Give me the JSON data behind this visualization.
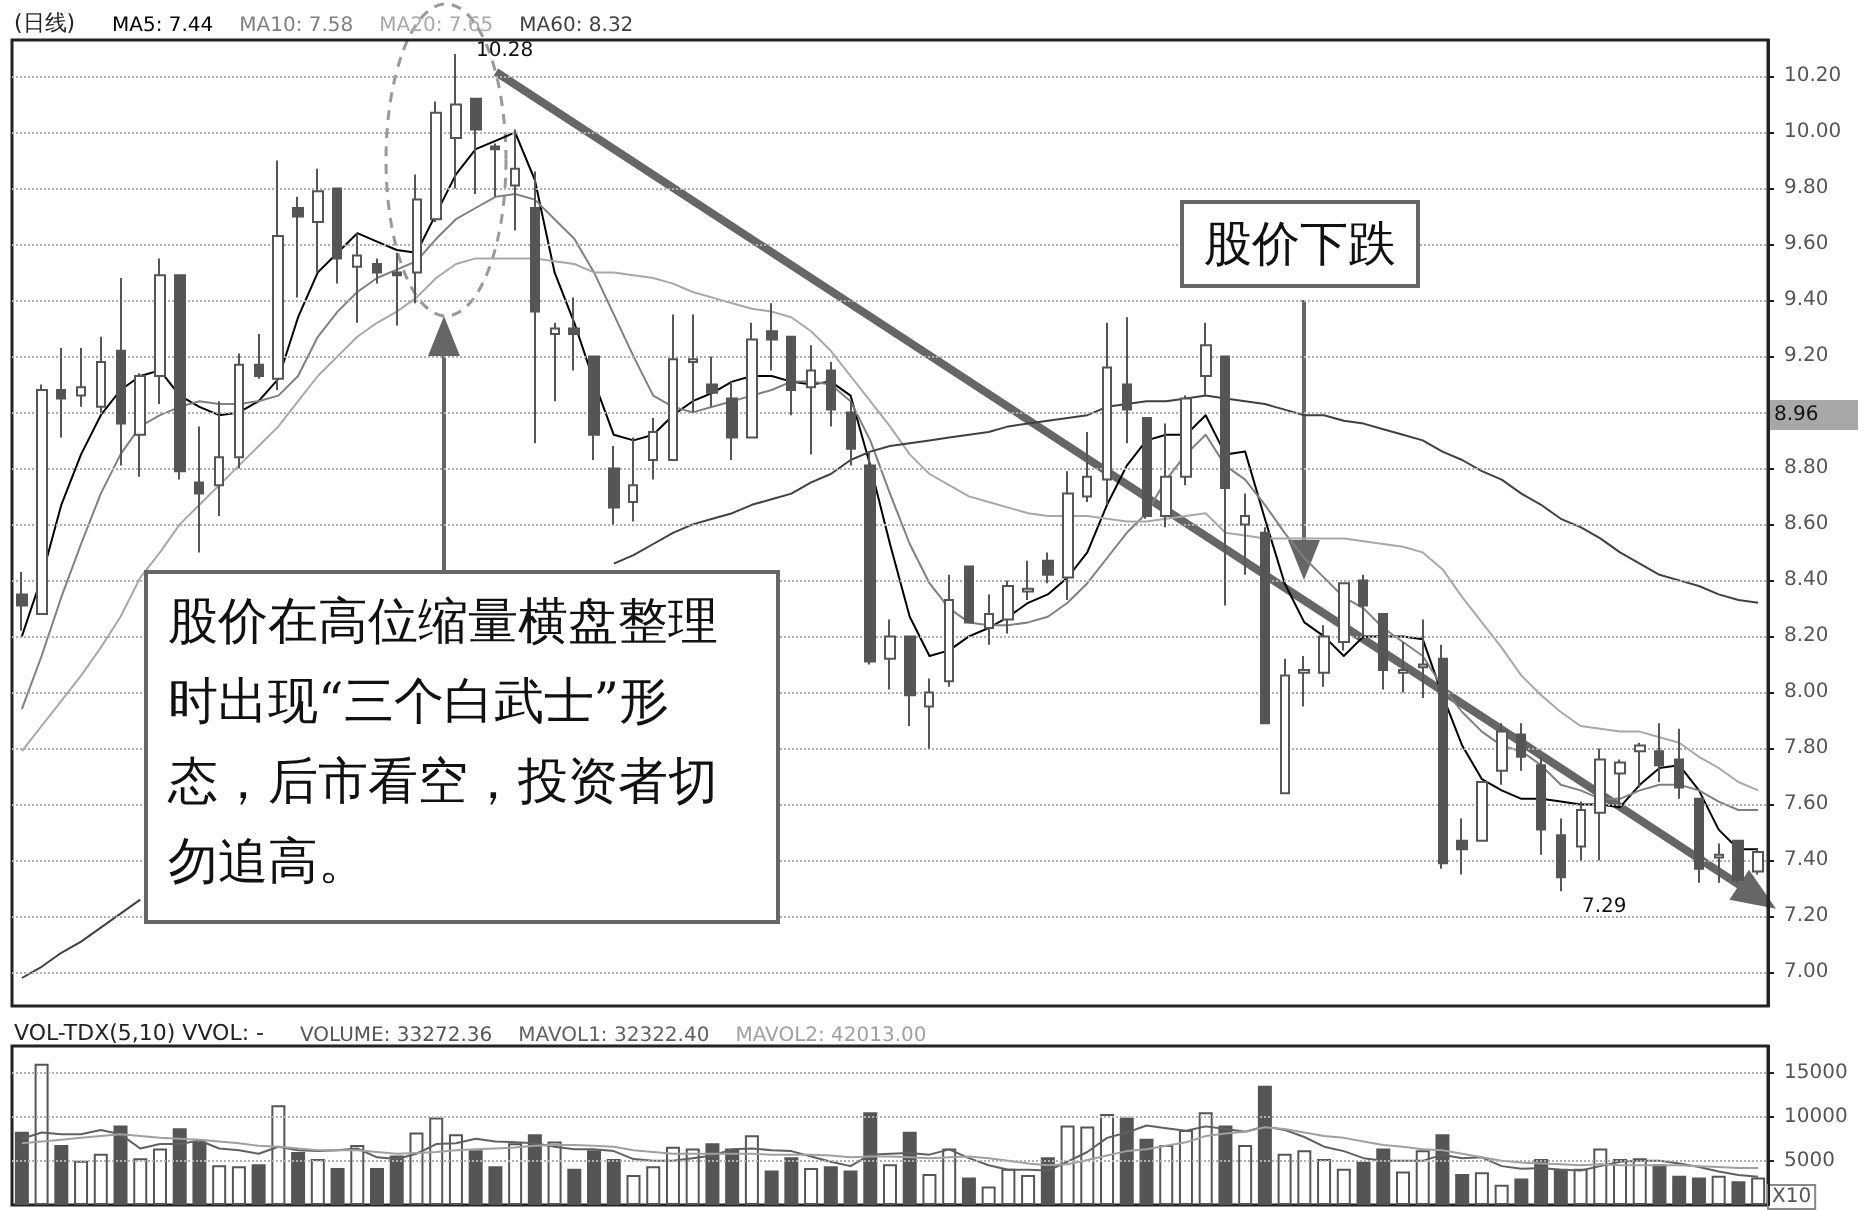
{
  "chart_data": [
    {
      "type": "candlestick",
      "title": "(日线)",
      "categories": [
        null,
        null,
        null,
        null,
        null,
        null,
        null,
        null,
        null,
        null,
        null,
        null,
        null,
        null,
        null,
        null,
        null,
        null,
        null,
        null,
        null,
        null,
        null,
        null,
        null,
        null,
        null,
        null,
        null,
        null,
        null,
        null,
        null,
        null,
        null,
        null,
        null,
        null,
        null,
        null,
        null,
        null,
        null,
        null,
        null,
        null,
        null,
        null,
        null,
        null,
        null,
        null,
        null,
        null,
        null,
        null,
        null,
        null,
        null,
        null,
        null,
        null,
        null,
        null,
        null,
        null,
        null,
        null,
        null,
        null,
        null,
        null,
        null,
        null,
        null,
        null,
        null,
        null,
        null,
        null,
        null,
        null,
        null,
        null,
        null,
        null,
        null,
        null,
        null
      ],
      "ohlc": [
        [
          8.35,
          8.43,
          8.22,
          8.31
        ],
        [
          8.28,
          9.1,
          8.28,
          9.08
        ],
        [
          9.08,
          9.23,
          8.91,
          9.05
        ],
        [
          9.06,
          9.23,
          9.02,
          9.09
        ],
        [
          9.02,
          9.27,
          9.0,
          9.18
        ],
        [
          9.22,
          9.48,
          8.81,
          8.96
        ],
        [
          8.92,
          9.14,
          8.77,
          9.13
        ],
        [
          9.13,
          9.55,
          9.03,
          9.49
        ],
        [
          9.49,
          9.49,
          8.76,
          8.79
        ],
        [
          8.75,
          8.95,
          8.5,
          8.71
        ],
        [
          8.74,
          9.04,
          8.63,
          8.84
        ],
        [
          8.84,
          9.21,
          8.8,
          9.17
        ],
        [
          9.17,
          9.28,
          9.12,
          9.13
        ],
        [
          9.12,
          9.9,
          9.08,
          9.63
        ],
        [
          9.73,
          9.77,
          9.41,
          9.7
        ],
        [
          9.68,
          9.87,
          9.5,
          9.79
        ],
        [
          9.8,
          9.8,
          9.46,
          9.55
        ],
        [
          9.52,
          9.64,
          9.32,
          9.56
        ],
        [
          9.53,
          9.55,
          9.46,
          9.5
        ],
        [
          9.5,
          9.57,
          9.31,
          9.49
        ],
        [
          9.5,
          9.85,
          9.39,
          9.76
        ],
        [
          9.69,
          10.11,
          9.68,
          10.07
        ],
        [
          9.98,
          10.28,
          9.8,
          10.1
        ],
        [
          10.12,
          10.12,
          9.78,
          10.01
        ],
        [
          9.95,
          9.96,
          9.77,
          9.94
        ],
        [
          9.81,
          10.01,
          9.65,
          9.87
        ],
        [
          9.73,
          9.86,
          8.89,
          9.36
        ],
        [
          9.28,
          9.32,
          9.04,
          9.3
        ],
        [
          9.3,
          9.41,
          9.15,
          9.28
        ],
        [
          9.2,
          9.2,
          8.83,
          8.92
        ],
        [
          8.8,
          8.88,
          8.6,
          8.66
        ],
        [
          8.68,
          8.91,
          8.61,
          8.74
        ],
        [
          8.83,
          8.98,
          8.76,
          8.93
        ],
        [
          8.83,
          9.35,
          8.83,
          9.19
        ],
        [
          9.18,
          9.35,
          9.0,
          9.19
        ],
        [
          9.1,
          9.2,
          9.02,
          9.07
        ],
        [
          9.05,
          9.11,
          8.83,
          8.91
        ],
        [
          8.91,
          9.32,
          8.91,
          9.26
        ],
        [
          9.29,
          9.39,
          9.15,
          9.26
        ],
        [
          9.27,
          9.27,
          8.99,
          9.08
        ],
        [
          9.09,
          9.24,
          8.85,
          9.15
        ],
        [
          9.15,
          9.18,
          8.95,
          9.01
        ],
        [
          9.0,
          9.04,
          8.81,
          8.87
        ],
        [
          8.81,
          8.86,
          8.1,
          8.11
        ],
        [
          8.12,
          8.26,
          8.01,
          8.2
        ],
        [
          8.2,
          8.2,
          7.88,
          7.99
        ],
        [
          7.95,
          8.05,
          7.8,
          8.0
        ],
        [
          8.04,
          8.42,
          8.02,
          8.33
        ],
        [
          8.45,
          8.45,
          8.25,
          8.25
        ],
        [
          8.23,
          8.35,
          8.17,
          8.28
        ],
        [
          8.26,
          8.4,
          8.21,
          8.38
        ],
        [
          8.36,
          8.47,
          8.33,
          8.37
        ],
        [
          8.47,
          8.5,
          8.39,
          8.42
        ],
        [
          8.41,
          8.79,
          8.33,
          8.71
        ],
        [
          8.7,
          8.93,
          8.68,
          8.77
        ],
        [
          8.76,
          9.32,
          8.67,
          9.16
        ],
        [
          9.1,
          9.34,
          8.89,
          9.01
        ],
        [
          8.98,
          8.98,
          8.62,
          8.63
        ],
        [
          8.63,
          8.96,
          8.59,
          8.77
        ],
        [
          8.77,
          9.06,
          8.74,
          9.05
        ],
        [
          9.13,
          9.32,
          9.06,
          9.24
        ],
        [
          9.2,
          9.2,
          8.31,
          8.73
        ],
        [
          8.6,
          8.71,
          8.42,
          8.63
        ],
        [
          8.57,
          8.59,
          7.89,
          7.89
        ],
        [
          7.64,
          8.12,
          7.64,
          8.06
        ],
        [
          8.07,
          8.13,
          7.95,
          8.08
        ],
        [
          8.07,
          8.24,
          8.02,
          8.2
        ],
        [
          8.18,
          8.39,
          8.15,
          8.39
        ],
        [
          8.4,
          8.42,
          8.2,
          8.31
        ],
        [
          8.28,
          8.28,
          8.01,
          8.08
        ],
        [
          8.07,
          8.18,
          8.0,
          8.08
        ],
        [
          8.09,
          8.26,
          7.98,
          8.1
        ],
        [
          8.12,
          8.17,
          7.37,
          7.39
        ],
        [
          7.47,
          7.55,
          7.35,
          7.44
        ],
        [
          7.47,
          7.68,
          7.47,
          7.68
        ],
        [
          7.72,
          7.89,
          7.67,
          7.86
        ],
        [
          7.85,
          7.89,
          7.72,
          7.77
        ],
        [
          7.74,
          7.77,
          7.42,
          7.51
        ],
        [
          7.49,
          7.55,
          7.29,
          7.34
        ],
        [
          7.45,
          7.61,
          7.4,
          7.58
        ],
        [
          7.57,
          7.8,
          7.4,
          7.76
        ],
        [
          7.71,
          7.76,
          7.6,
          7.75
        ],
        [
          7.79,
          7.82,
          7.66,
          7.81
        ],
        [
          7.79,
          7.89,
          7.68,
          7.74
        ],
        [
          7.76,
          7.87,
          7.62,
          7.66
        ],
        [
          7.62,
          7.62,
          7.32,
          7.37
        ],
        [
          7.41,
          7.46,
          7.32,
          7.42
        ],
        [
          7.47,
          7.47,
          7.32,
          7.33
        ],
        [
          7.36,
          7.44,
          7.35,
          7.43
        ]
      ],
      "series": [
        {
          "name": "MA5: 7.44",
          "type": "line",
          "color": "#000000",
          "values": [
            8.2,
            8.41,
            8.67,
            8.85,
            8.99,
            9.08,
            9.13,
            9.15,
            9.06,
            9.02,
            8.99,
            9.0,
            9.04,
            9.12,
            9.34,
            9.5,
            9.57,
            9.64,
            9.61,
            9.58,
            9.57,
            9.71,
            9.85,
            9.94,
            9.97,
            10.0,
            9.83,
            9.5,
            9.32,
            9.11,
            8.92,
            8.9,
            8.92,
            8.99,
            9.04,
            9.07,
            9.11,
            9.13,
            9.13,
            9.11,
            9.1,
            9.11,
            9.06,
            8.81,
            8.53,
            8.27,
            8.13,
            8.15,
            8.2,
            8.23,
            8.27,
            8.32,
            8.35,
            8.41,
            8.5,
            8.67,
            8.81,
            8.9,
            8.92,
            8.92,
            8.99,
            8.85,
            8.86,
            8.62,
            8.39,
            8.25,
            8.2,
            8.13,
            8.2,
            8.2,
            8.2,
            8.19,
            7.99,
            7.81,
            7.69,
            7.65,
            7.62,
            7.62,
            7.61,
            7.6,
            7.6,
            7.59,
            7.67,
            7.73,
            7.74,
            7.65,
            7.51,
            7.44,
            7.44
          ]
        },
        {
          "name": "MA10: 7.58",
          "type": "line",
          "color": "#808080",
          "values": [
            7.94,
            8.13,
            8.34,
            8.53,
            8.71,
            8.85,
            8.95,
            8.99,
            9.02,
            9.04,
            9.03,
            9.03,
            9.04,
            9.06,
            9.13,
            9.27,
            9.36,
            9.43,
            9.48,
            9.51,
            9.54,
            9.62,
            9.69,
            9.73,
            9.77,
            9.78,
            9.76,
            9.69,
            9.62,
            9.5,
            9.35,
            9.2,
            9.06,
            9.02,
            9.0,
            9.02,
            9.04,
            9.06,
            9.08,
            9.11,
            9.11,
            9.1,
            9.04,
            8.9,
            8.71,
            8.53,
            8.39,
            8.3,
            8.25,
            8.24,
            8.24,
            8.25,
            8.27,
            8.32,
            8.39,
            8.48,
            8.57,
            8.64,
            8.76,
            8.85,
            8.92,
            8.81,
            8.76,
            8.67,
            8.57,
            8.48,
            8.41,
            8.34,
            8.3,
            8.23,
            8.18,
            8.13,
            8.02,
            7.93,
            7.86,
            7.81,
            7.79,
            7.74,
            7.67,
            7.65,
            7.62,
            7.62,
            7.65,
            7.67,
            7.67,
            7.65,
            7.61,
            7.58,
            7.58
          ]
        },
        {
          "name": "MA20: 7.65",
          "type": "line",
          "color": "#a8a8a8",
          "values": [
            7.79,
            7.88,
            7.97,
            8.06,
            8.16,
            8.27,
            8.41,
            8.5,
            8.6,
            8.67,
            8.74,
            8.81,
            8.88,
            8.95,
            9.04,
            9.13,
            9.2,
            9.27,
            9.32,
            9.36,
            9.41,
            9.48,
            9.53,
            9.55,
            9.55,
            9.55,
            9.55,
            9.54,
            9.53,
            9.5,
            9.5,
            9.49,
            9.48,
            9.46,
            9.43,
            9.41,
            9.39,
            9.37,
            9.36,
            9.34,
            9.29,
            9.22,
            9.13,
            9.04,
            8.95,
            8.85,
            8.78,
            8.74,
            8.7,
            8.68,
            8.66,
            8.64,
            8.63,
            8.63,
            8.63,
            8.62,
            8.61,
            8.61,
            8.62,
            8.63,
            8.64,
            8.57,
            8.56,
            8.55,
            8.55,
            8.55,
            8.55,
            8.55,
            8.54,
            8.53,
            8.52,
            8.5,
            8.44,
            8.34,
            8.25,
            8.16,
            8.06,
            7.99,
            7.93,
            7.88,
            7.87,
            7.86,
            7.86,
            7.84,
            7.82,
            7.77,
            7.73,
            7.68,
            7.65
          ]
        },
        {
          "name": "MA60: 8.32",
          "type": "line",
          "color": "#404040",
          "values": [
            6.98,
            7.02,
            7.07,
            7.11,
            7.16,
            7.21,
            7.26,
            null,
            null,
            null,
            null,
            null,
            null,
            null,
            null,
            null,
            null,
            null,
            null,
            null,
            null,
            null,
            null,
            null,
            null,
            null,
            null,
            null,
            null,
            null,
            8.46,
            8.49,
            8.53,
            8.57,
            8.6,
            8.62,
            8.64,
            8.67,
            8.69,
            8.71,
            8.75,
            8.78,
            8.83,
            8.86,
            8.88,
            8.89,
            8.9,
            8.91,
            8.92,
            8.93,
            8.95,
            8.96,
            8.97,
            8.98,
            8.99,
            9.02,
            9.03,
            9.04,
            9.04,
            9.05,
            9.06,
            9.05,
            9.04,
            9.03,
            9.01,
            8.99,
            8.99,
            8.97,
            8.96,
            8.94,
            8.92,
            8.9,
            8.86,
            8.83,
            8.79,
            8.76,
            8.71,
            8.67,
            8.62,
            8.59,
            8.55,
            8.5,
            8.46,
            8.42,
            8.4,
            8.38,
            8.35,
            8.33,
            8.32
          ]
        }
      ],
      "ylim": [
        6.88,
        10.33
      ],
      "yticks": [
        {
          "value": 7,
          "label": "7.00"
        },
        {
          "value": 7.2,
          "label": "7.20"
        },
        {
          "value": 7.4,
          "label": "7.40"
        },
        {
          "value": 7.6,
          "label": "7.60"
        },
        {
          "value": 7.8,
          "label": "7.80"
        },
        {
          "value": 8,
          "label": "8.00"
        },
        {
          "value": 8.2,
          "label": "8.20"
        },
        {
          "value": 8.4,
          "label": "8.40"
        },
        {
          "value": 8.6,
          "label": "8.60"
        },
        {
          "value": 8.8,
          "label": "8.80"
        },
        {
          "value": 9,
          "label": null
        },
        {
          "value": 9.2,
          "label": "9.20"
        },
        {
          "value": 9.4,
          "label": "9.40"
        },
        {
          "value": 9.6,
          "label": "9.60"
        },
        {
          "value": 9.8,
          "label": "9.80"
        },
        {
          "value": 10,
          "label": "10.00"
        },
        {
          "value": 10.2,
          "label": "10.20"
        }
      ],
      "grid": "y",
      "legend": "top left",
      "tick_labels": "y",
      "marker": "none",
      "annotations": [
        "10.28",
        "7.29",
        "8.96",
        "股价在高位缩量横盘整理时出现“三个白武士”形态，后市看空，投资者切勿追高。",
        "股价下跌"
      ]
    },
    {
      "type": "bar",
      "title": "VOL-TDX(5,10) VVOL: -",
      "categories": [
        null,
        null,
        null,
        null,
        null,
        null,
        null,
        null,
        null,
        null,
        null,
        null,
        null,
        null,
        null,
        null,
        null,
        null,
        null,
        null,
        null,
        null,
        null,
        null,
        null,
        null,
        null,
        null,
        null,
        null,
        null,
        null,
        null,
        null,
        null,
        null,
        null,
        null,
        null,
        null,
        null,
        null,
        null,
        null,
        null,
        null,
        null,
        null,
        null,
        null,
        null,
        null,
        null,
        null,
        null,
        null,
        null,
        null,
        null,
        null,
        null,
        null,
        null,
        null,
        null,
        null,
        null,
        null,
        null,
        null,
        null,
        null,
        null,
        null,
        null,
        null,
        null,
        null,
        null,
        null,
        null,
        null,
        null,
        null,
        null,
        null,
        null,
        null,
        null
      ],
      "series": [
        {
          "name": "VOLUME: 33272.36",
          "color": "#555555",
          "values": [
            8300,
            16000,
            6800,
            5000,
            5800,
            9000,
            5300,
            6400,
            8700,
            7200,
            4500,
            4400,
            4600,
            11300,
            6000,
            5200,
            4200,
            6800,
            4200,
            5600,
            8200,
            9900,
            8000,
            6200,
            4400,
            7000,
            8000,
            7200,
            4100,
            6200,
            5200,
            3400,
            4400,
            6600,
            6400,
            7000,
            6400,
            7900,
            3900,
            5400,
            4200,
            4400,
            3900,
            10500,
            4600,
            8300,
            3500,
            6400,
            3100,
            2100,
            4100,
            3400,
            5400,
            9000,
            8900,
            10300,
            9900,
            7500,
            6800,
            8500,
            10500,
            9000,
            6800,
            13500,
            5800,
            6200,
            5200,
            4100,
            4900,
            6400,
            3800,
            6200,
            8000,
            3500,
            3700,
            2300,
            3000,
            5200,
            4100,
            4100,
            6400,
            5200,
            5300,
            4600,
            3300,
            3100,
            3300,
            2700,
            3100
          ],
          "colors": [
            "#555555",
            "#ffffff",
            "#555555",
            "#ffffff",
            "#ffffff",
            "#555555",
            "#ffffff",
            "#ffffff",
            "#555555",
            "#555555",
            "#ffffff",
            "#ffffff",
            "#555555",
            "#ffffff",
            "#555555",
            "#ffffff",
            "#555555",
            "#ffffff",
            "#555555",
            "#555555",
            "#ffffff",
            "#ffffff",
            "#ffffff",
            "#555555",
            "#555555",
            "#ffffff",
            "#555555",
            "#ffffff",
            "#555555",
            "#555555",
            "#555555",
            "#ffffff",
            "#ffffff",
            "#ffffff",
            "#ffffff",
            "#555555",
            "#555555",
            "#ffffff",
            "#555555",
            "#555555",
            "#ffffff",
            "#555555",
            "#555555",
            "#555555",
            "#ffffff",
            "#555555",
            "#ffffff",
            "#ffffff",
            "#555555",
            "#ffffff",
            "#ffffff",
            "#ffffff",
            "#555555",
            "#ffffff",
            "#ffffff",
            "#ffffff",
            "#555555",
            "#555555",
            "#ffffff",
            "#ffffff",
            "#ffffff",
            "#555555",
            "#ffffff",
            "#555555",
            "#ffffff",
            "#ffffff",
            "#ffffff",
            "#ffffff",
            "#555555",
            "#555555",
            "#ffffff",
            "#ffffff",
            "#555555",
            "#555555",
            "#ffffff",
            "#ffffff",
            "#555555",
            "#555555",
            "#555555",
            "#ffffff",
            "#ffffff",
            "#ffffff",
            "#ffffff",
            "#555555",
            "#555555",
            "#555555",
            "#ffffff",
            "#555555",
            "#ffffff"
          ]
        },
        {
          "name": "MAVOL1: 32322.40",
          "type": "line",
          "color": "#606060",
          "values": [
            7500,
            8200,
            8000,
            8000,
            8500,
            8000,
            6400,
            6900,
            6900,
            7300,
            6400,
            6200,
            5800,
            6600,
            6200,
            6100,
            6200,
            6400,
            5400,
            5200,
            5800,
            6900,
            7000,
            7500,
            7200,
            7100,
            7000,
            6600,
            6300,
            6300,
            6100,
            5200,
            5000,
            5000,
            5300,
            5600,
            6300,
            6400,
            6200,
            6100,
            5500,
            4900,
            4400,
            5700,
            5800,
            5900,
            5700,
            6300,
            5300,
            4500,
            4000,
            4000,
            3900,
            4900,
            6000,
            7600,
            8200,
            9000,
            8700,
            8400,
            8900,
            8600,
            8300,
            8900,
            8500,
            7700,
            6600,
            6100,
            5300,
            5000,
            5000,
            5000,
            5700,
            5300,
            5400,
            4400,
            4100,
            4200,
            4000,
            3900,
            4400,
            4900,
            5000,
            5000,
            4700,
            4300,
            3800,
            3400,
            3200
          ]
        },
        {
          "name": "MAVOL2: 42013.00",
          "type": "line",
          "color": "#a0a0a0",
          "values": [
            7000,
            7200,
            7400,
            7600,
            7800,
            8000,
            7800,
            7600,
            7500,
            7400,
            7200,
            7000,
            6700,
            6600,
            6400,
            6200,
            6200,
            6200,
            6000,
            5800,
            5900,
            6000,
            6200,
            6300,
            6400,
            6500,
            6700,
            6800,
            6800,
            6700,
            6600,
            6200,
            6000,
            5800,
            5800,
            5800,
            5800,
            5800,
            5700,
            5700,
            5700,
            5600,
            5400,
            5500,
            5500,
            5400,
            5300,
            5400,
            5500,
            5300,
            5000,
            4700,
            4500,
            4600,
            5100,
            5600,
            6100,
            6300,
            6700,
            7100,
            7800,
            8100,
            8300,
            8800,
            8600,
            8200,
            7800,
            7600,
            7200,
            6800,
            6600,
            6300,
            6200,
            5800,
            5400,
            5000,
            4800,
            4700,
            4600,
            4500,
            4600,
            4500,
            4500,
            4500,
            4500,
            4400,
            4300,
            4200,
            4200
          ]
        }
      ],
      "ylim": [
        0,
        18000
      ],
      "yticks": [
        5000,
        10000,
        15000
      ],
      "ylabel": "X10",
      "grid": "y",
      "legend": "top left",
      "tick_labels": "y",
      "marker": "none"
    }
  ]
}
